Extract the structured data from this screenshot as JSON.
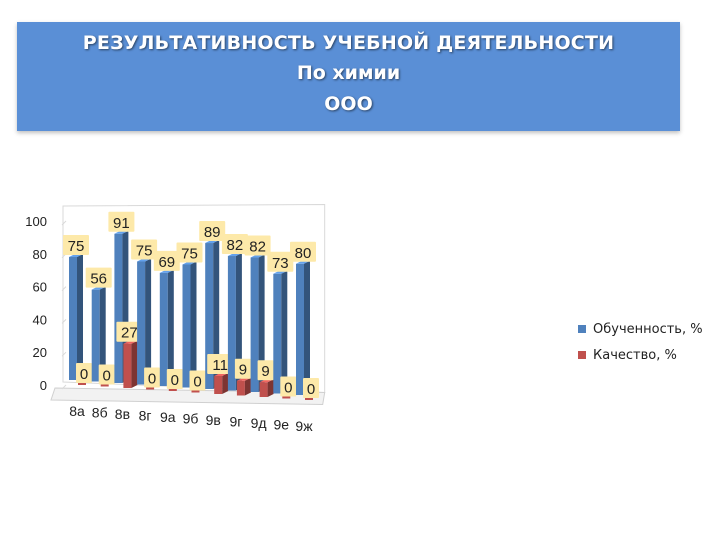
{
  "header": {
    "line1": "РЕЗУЛЬТАТИВНОСТЬ УЧЕБНОЙ ДЕЯТЕЛЬНОСТИ",
    "line2": "По химии",
    "line3": "ООО"
  },
  "chart_data": {
    "type": "bar",
    "categories": [
      "8а",
      "8б",
      "8в",
      "8г",
      "9а",
      "9б",
      "9в",
      "9г",
      "9д",
      "9е",
      "9ж"
    ],
    "series": [
      {
        "name": "Обученность, %",
        "values": [
          75,
          56,
          91,
          75,
          69,
          75,
          89,
          82,
          82,
          73,
          80
        ],
        "color": "#4f81bd"
      },
      {
        "name": "Качество, %",
        "values": [
          0,
          0,
          27,
          0,
          0,
          0,
          11,
          9,
          9,
          0,
          0
        ],
        "color": "#c0504d"
      }
    ],
    "yticks": [
      "0",
      "20",
      "40",
      "60",
      "80",
      "100"
    ],
    "ylim": [
      0,
      100
    ],
    "legend_position": "right",
    "label_color": "#fde9a9"
  }
}
